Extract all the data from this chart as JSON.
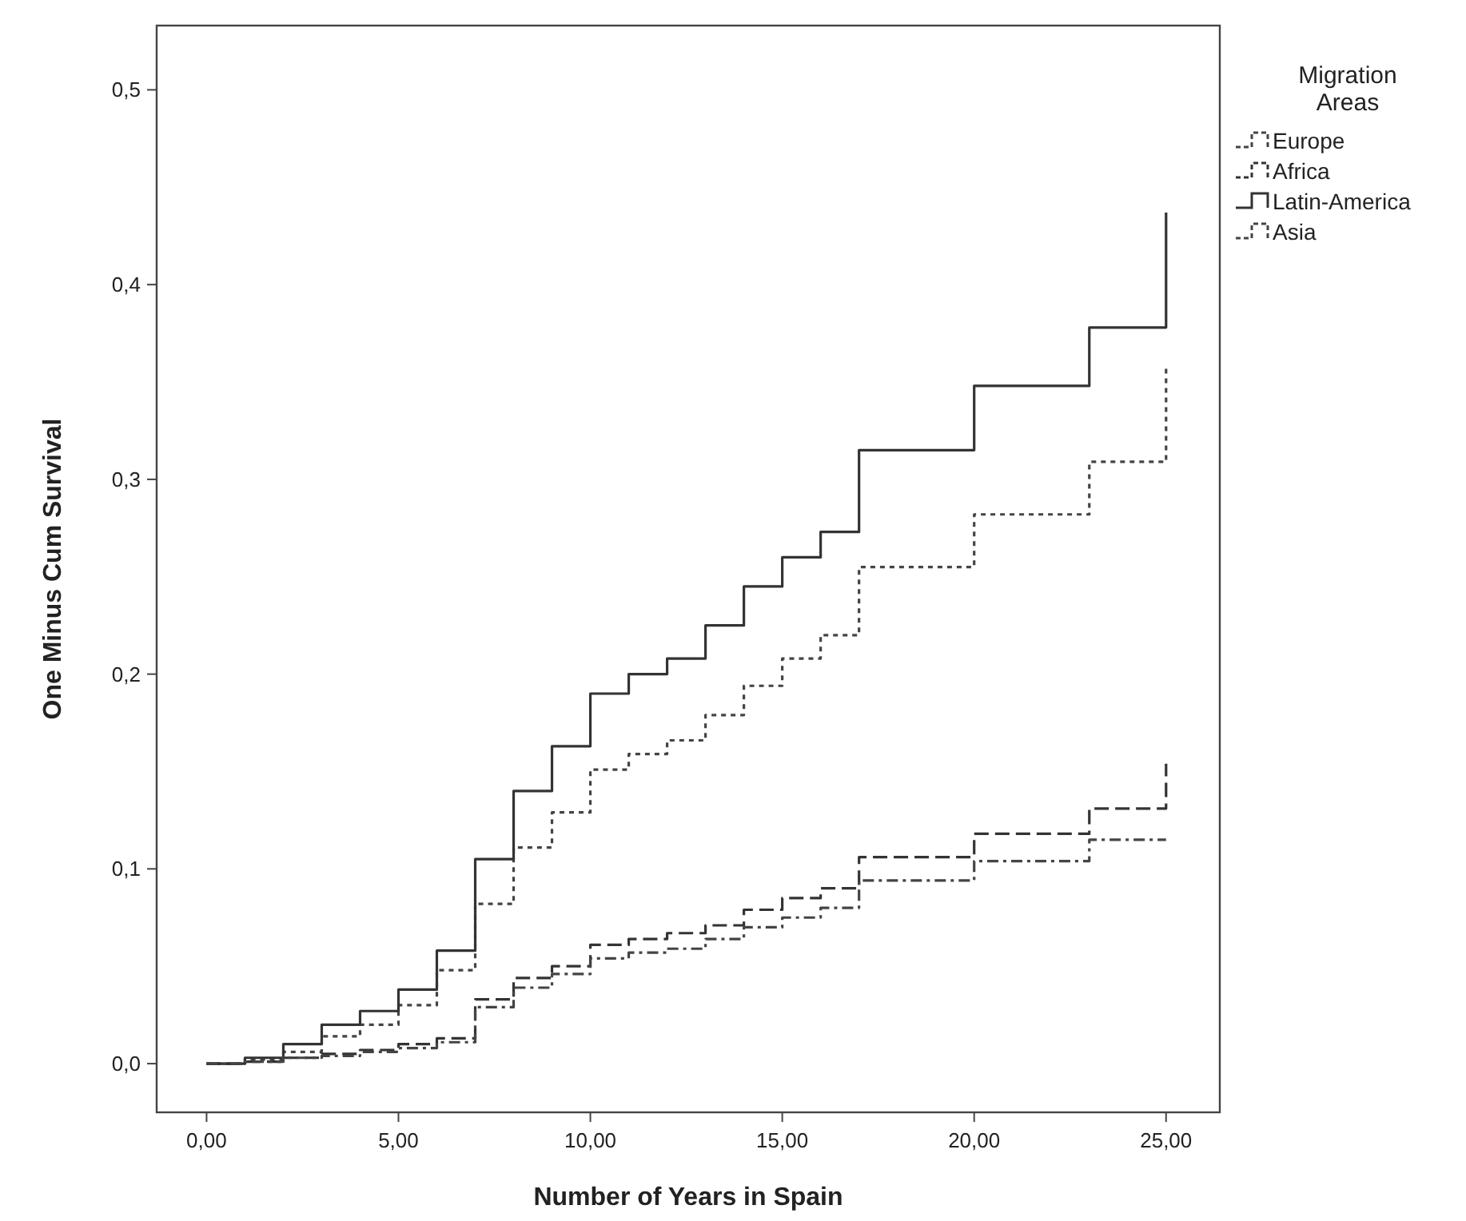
{
  "chart_data": {
    "type": "step",
    "xlabel": "Number of Years in Spain",
    "ylabel": "One Minus Cum Survival",
    "legend_title": "Migration Areas",
    "legend": "right",
    "grid": false,
    "xlim": [
      -1.3,
      26.4
    ],
    "ylim": [
      -0.025,
      0.533
    ],
    "xticks": [
      {
        "value": 0,
        "label": "0,00"
      },
      {
        "value": 5,
        "label": "5,00"
      },
      {
        "value": 10,
        "label": "10,00"
      },
      {
        "value": 15,
        "label": "15,00"
      },
      {
        "value": 20,
        "label": "20,00"
      },
      {
        "value": 25,
        "label": "25,00"
      }
    ],
    "yticks": [
      {
        "value": 0,
        "label": "0,0"
      },
      {
        "value": 0.1,
        "label": "0,1"
      },
      {
        "value": 0.2,
        "label": "0,2"
      },
      {
        "value": 0.3,
        "label": "0,3"
      },
      {
        "value": 0.4,
        "label": "0,4"
      },
      {
        "value": 0.5,
        "label": "0,5"
      }
    ],
    "series": [
      {
        "name": "Europe",
        "color": "#444444",
        "line_style": "dotted",
        "x": [
          0,
          1,
          2,
          3,
          4,
          5,
          6,
          7,
          8,
          9,
          10,
          11,
          12,
          13,
          14,
          15,
          16,
          17,
          20,
          23,
          25
        ],
        "values": [
          0,
          0.002,
          0.006,
          0.014,
          0.02,
          0.03,
          0.048,
          0.082,
          0.111,
          0.129,
          0.151,
          0.159,
          0.166,
          0.179,
          0.194,
          0.208,
          0.22,
          0.255,
          0.282,
          0.309,
          0.359
        ]
      },
      {
        "name": "Africa",
        "color": "#333333",
        "line_style": "dashed",
        "x": [
          0,
          1,
          2,
          3,
          4,
          5,
          6,
          7,
          8,
          9,
          10,
          11,
          12,
          13,
          14,
          15,
          16,
          17,
          20,
          23,
          25
        ],
        "values": [
          0,
          0.001,
          0.003,
          0.005,
          0.007,
          0.01,
          0.013,
          0.033,
          0.044,
          0.05,
          0.061,
          0.064,
          0.067,
          0.071,
          0.079,
          0.085,
          0.09,
          0.106,
          0.118,
          0.131,
          0.154
        ]
      },
      {
        "name": "Latin-America",
        "color": "#333333",
        "line_style": "solid",
        "x": [
          0,
          1,
          2,
          3,
          4,
          5,
          6,
          7,
          8,
          9,
          10,
          11,
          12,
          13,
          14,
          15,
          16,
          17,
          20,
          23,
          25
        ],
        "values": [
          0,
          0.003,
          0.01,
          0.02,
          0.027,
          0.038,
          0.058,
          0.105,
          0.14,
          0.163,
          0.19,
          0.2,
          0.208,
          0.225,
          0.245,
          0.26,
          0.273,
          0.315,
          0.348,
          0.378,
          0.437
        ]
      },
      {
        "name": "Asia",
        "color": "#444444",
        "line_style": "dashdot",
        "x": [
          0,
          1,
          2,
          3,
          4,
          5,
          6,
          7,
          8,
          9,
          10,
          11,
          12,
          13,
          14,
          15,
          16,
          17,
          20,
          23,
          25
        ],
        "values": [
          0,
          0.001,
          0.003,
          0.004,
          0.006,
          0.008,
          0.011,
          0.029,
          0.039,
          0.046,
          0.054,
          0.057,
          0.059,
          0.064,
          0.07,
          0.075,
          0.08,
          0.094,
          0.104,
          0.115,
          0.115
        ]
      }
    ]
  }
}
